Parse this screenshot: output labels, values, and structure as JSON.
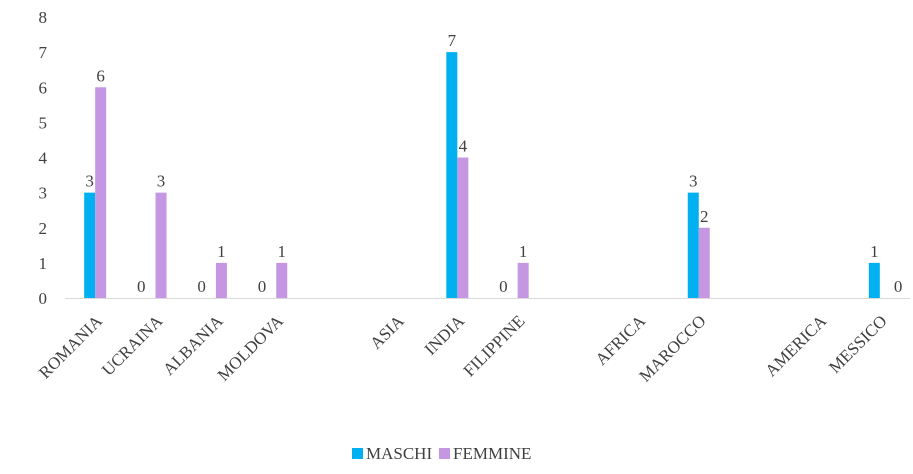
{
  "chart_data": {
    "type": "bar",
    "categories": [
      "ROMANIA",
      "UCRAINA",
      "ALBANIA",
      "MOLDOVA",
      "",
      "ASIA",
      "INDIA",
      "FILIPPINE",
      "",
      "AFRICA",
      "MAROCCO",
      "",
      "AMERICA",
      "MESSICO"
    ],
    "series": [
      {
        "name": "MASCHI",
        "color": "#00B0F0",
        "values": [
          3,
          0,
          0,
          0,
          null,
          null,
          7,
          0,
          null,
          null,
          3,
          null,
          null,
          1
        ]
      },
      {
        "name": "FEMMINE",
        "color": "#C597E3",
        "values": [
          6,
          3,
          1,
          1,
          null,
          null,
          4,
          1,
          null,
          null,
          2,
          null,
          null,
          0
        ]
      }
    ],
    "ylim": [
      0,
      8
    ],
    "yticks": [
      "0",
      "1",
      "2",
      "3",
      "4",
      "5",
      "6",
      "7",
      "8"
    ],
    "grid": false,
    "legend": "bottom",
    "title": "",
    "xlabel": "",
    "ylabel": ""
  }
}
